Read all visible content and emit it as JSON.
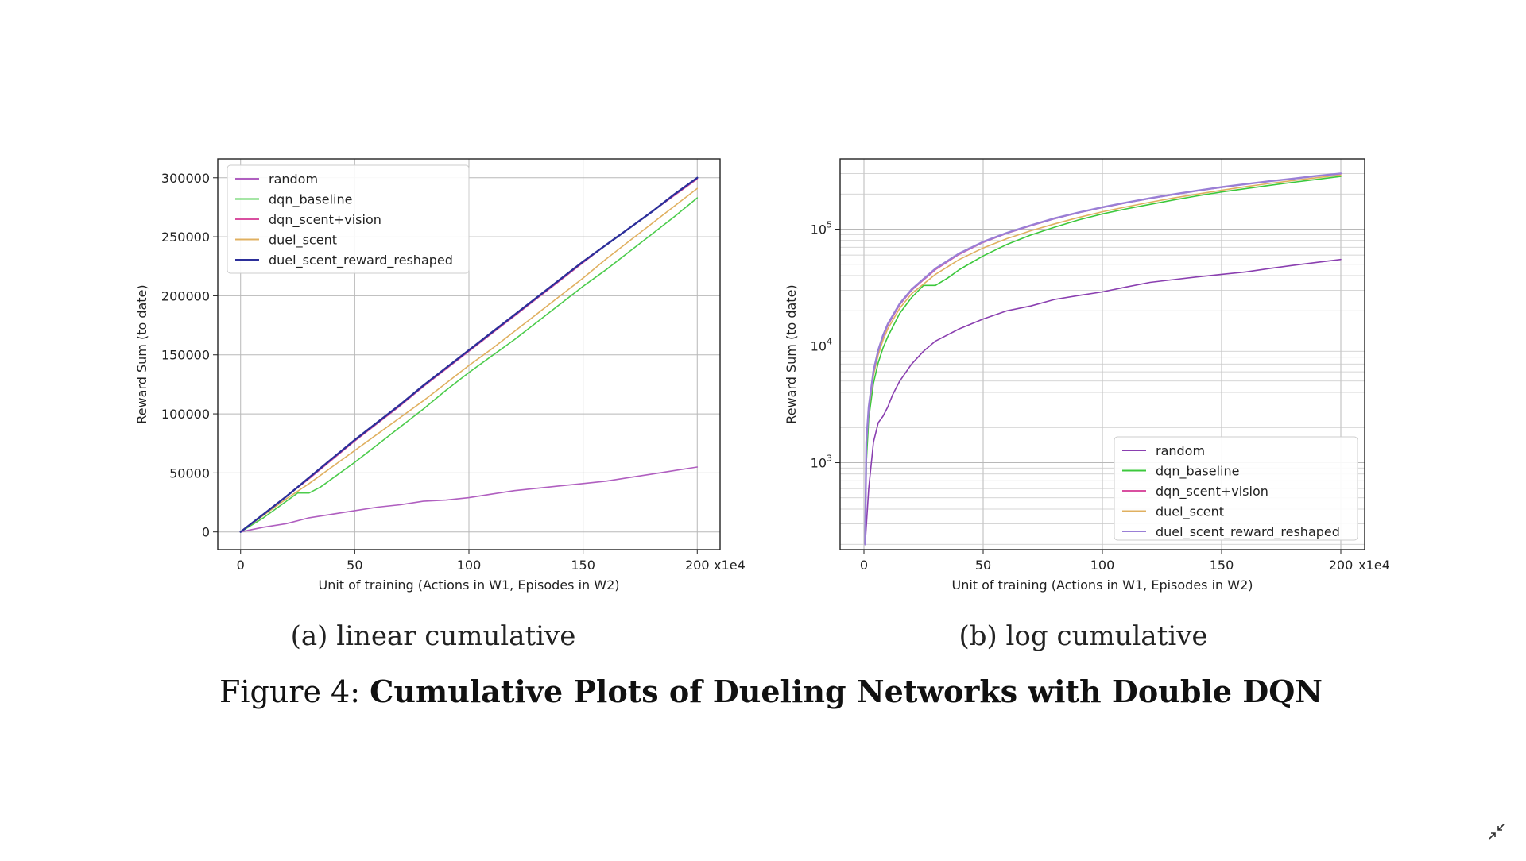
{
  "figure": {
    "caption_prefix": "Figure 4: ",
    "caption_title": "Cumulative Plots of Dueling Networks with Double DQN",
    "exit_fullscreen_icon": "exit-fullscreen-icon"
  },
  "chart_data": [
    {
      "type": "line",
      "subcaption": "(a) linear cumulative",
      "xlabel": "Unit of training (Actions in W1, Episodes in W2)",
      "ylabel": "Reward Sum (to date)",
      "x_offset_text": "x1e4",
      "xlim": [
        -10,
        210
      ],
      "ylim": [
        -15000,
        316000
      ],
      "yscale": "linear",
      "x_ticks": [
        0,
        50,
        100,
        150,
        200
      ],
      "x_tick_labels": [
        "0",
        "50",
        "100",
        "150",
        "200"
      ],
      "y_ticks": [
        0,
        50000,
        100000,
        150000,
        200000,
        250000,
        300000
      ],
      "y_tick_labels": [
        "0",
        "50000",
        "100000",
        "150000",
        "200000",
        "250000",
        "300000"
      ],
      "grid": true,
      "legend_position": "top-left",
      "series": [
        {
          "name": "random",
          "color": "#b05fc0",
          "x": [
            0,
            10,
            20,
            30,
            40,
            50,
            60,
            70,
            80,
            90,
            100,
            110,
            120,
            130,
            140,
            150,
            160,
            170,
            180,
            190,
            200
          ],
          "y": [
            0,
            4000,
            7000,
            12000,
            15000,
            18000,
            21000,
            23000,
            26000,
            27000,
            29000,
            32000,
            35000,
            37000,
            39000,
            41000,
            43000,
            46000,
            49000,
            52000,
            55000
          ]
        },
        {
          "name": "dqn_baseline",
          "color": "#4ccc4c",
          "x": [
            0,
            10,
            20,
            25,
            30,
            35,
            40,
            50,
            60,
            70,
            80,
            90,
            100,
            110,
            120,
            130,
            140,
            150,
            160,
            170,
            180,
            190,
            200
          ],
          "y": [
            0,
            12000,
            26000,
            33000,
            33000,
            38000,
            45000,
            59000,
            74000,
            89000,
            104000,
            120000,
            135000,
            149000,
            163000,
            178000,
            193000,
            208000,
            222000,
            237000,
            252000,
            267000,
            283000
          ]
        },
        {
          "name": "dqn_scent+vision",
          "color": "#d94fa0",
          "x": [
            0,
            10,
            20,
            30,
            40,
            50,
            60,
            70,
            80,
            90,
            100,
            110,
            120,
            130,
            140,
            150,
            160,
            170,
            180,
            190,
            200
          ],
          "y": [
            0,
            15000,
            30000,
            45000,
            61000,
            77000,
            92000,
            107000,
            123000,
            138000,
            153000,
            168000,
            183000,
            198000,
            213000,
            228000,
            243000,
            257000,
            271000,
            285000,
            299000
          ]
        },
        {
          "name": "duel_scent",
          "color": "#e0b060",
          "x": [
            0,
            10,
            20,
            30,
            40,
            50,
            60,
            70,
            80,
            90,
            100,
            110,
            120,
            130,
            140,
            150,
            160,
            170,
            180,
            190,
            200
          ],
          "y": [
            0,
            14000,
            28000,
            41000,
            55000,
            69000,
            83000,
            97000,
            111000,
            126000,
            141000,
            155000,
            170000,
            185000,
            200000,
            215000,
            231000,
            246000,
            261000,
            276000,
            291000
          ]
        },
        {
          "name": "duel_scent_reward_reshaped",
          "color": "#2c2f9a",
          "x": [
            0,
            10,
            20,
            30,
            40,
            50,
            60,
            70,
            80,
            90,
            100,
            110,
            120,
            130,
            140,
            150,
            160,
            170,
            180,
            190,
            200
          ],
          "y": [
            0,
            15000,
            30000,
            46000,
            62000,
            78000,
            93000,
            108000,
            124000,
            139000,
            154000,
            169000,
            184000,
            199000,
            214000,
            229000,
            243000,
            257000,
            271000,
            286000,
            300000
          ]
        }
      ]
    },
    {
      "type": "line",
      "subcaption": "(b) log cumulative",
      "xlabel": "Unit of training (Actions in W1, Episodes in W2)",
      "ylabel": "Reward Sum (to date)",
      "x_offset_text": "x1e4",
      "xlim": [
        -10,
        210
      ],
      "ylim": [
        180,
        400000
      ],
      "yscale": "log",
      "x_ticks": [
        0,
        50,
        100,
        150,
        200
      ],
      "x_tick_labels": [
        "0",
        "50",
        "100",
        "150",
        "200"
      ],
      "y_ticks": [
        1000,
        10000,
        100000
      ],
      "y_tick_base": "10",
      "y_tick_exponents": [
        "3",
        "4",
        "5"
      ],
      "grid": true,
      "legend_position": "lower-right",
      "series": [
        {
          "name": "random",
          "color": "#8a3fb0",
          "x": [
            0.5,
            2,
            4,
            6,
            8,
            10,
            12,
            15,
            20,
            25,
            30,
            40,
            50,
            60,
            70,
            80,
            90,
            100,
            110,
            120,
            130,
            140,
            150,
            160,
            170,
            180,
            190,
            200
          ],
          "y": [
            200,
            600,
            1500,
            2200,
            2500,
            3000,
            3800,
            5000,
            7000,
            9000,
            11000,
            14000,
            17000,
            20000,
            22000,
            25000,
            27000,
            29000,
            32000,
            35000,
            37000,
            39000,
            41000,
            43000,
            46000,
            49000,
            52000,
            55000
          ]
        },
        {
          "name": "dqn_baseline",
          "color": "#3cc83c",
          "x": [
            0.5,
            1,
            2,
            4,
            6,
            8,
            10,
            15,
            20,
            25,
            30,
            35,
            40,
            50,
            60,
            70,
            80,
            90,
            100,
            110,
            120,
            130,
            140,
            150,
            160,
            170,
            180,
            190,
            200
          ],
          "y": [
            200,
            1000,
            2400,
            4800,
            7200,
            9600,
            12000,
            19000,
            26000,
            33000,
            33000,
            38000,
            45000,
            59000,
            74000,
            89000,
            104000,
            120000,
            135000,
            149000,
            163000,
            178000,
            193000,
            208000,
            222000,
            237000,
            252000,
            267000,
            283000
          ]
        },
        {
          "name": "dqn_scent+vision",
          "color": "#d94fa0",
          "x": [
            0.5,
            1,
            2,
            4,
            6,
            8,
            10,
            15,
            20,
            30,
            40,
            50,
            60,
            70,
            80,
            90,
            100,
            110,
            120,
            130,
            140,
            150,
            160,
            170,
            180,
            190,
            200
          ],
          "y": [
            200,
            1500,
            3000,
            6000,
            9000,
            12000,
            15000,
            22500,
            30000,
            45000,
            61000,
            77000,
            92000,
            107000,
            123000,
            138000,
            153000,
            168000,
            183000,
            198000,
            213000,
            228000,
            243000,
            257000,
            271000,
            285000,
            299000
          ]
        },
        {
          "name": "duel_scent",
          "color": "#e0b060",
          "x": [
            0.5,
            1,
            2,
            4,
            6,
            8,
            10,
            15,
            20,
            30,
            40,
            50,
            60,
            70,
            80,
            90,
            100,
            110,
            120,
            130,
            140,
            150,
            160,
            170,
            180,
            190,
            200
          ],
          "y": [
            200,
            1400,
            2800,
            5600,
            8400,
            11200,
            14000,
            21000,
            28000,
            41000,
            55000,
            69000,
            83000,
            97000,
            111000,
            126000,
            141000,
            155000,
            170000,
            185000,
            200000,
            215000,
            231000,
            246000,
            261000,
            276000,
            291000
          ]
        },
        {
          "name": "duel_scent_reward_reshaped",
          "color": "#9a7fd6",
          "x": [
            0.5,
            1,
            2,
            4,
            6,
            8,
            10,
            15,
            20,
            30,
            40,
            50,
            60,
            70,
            80,
            90,
            100,
            110,
            120,
            130,
            140,
            150,
            160,
            170,
            180,
            190,
            200
          ],
          "y": [
            200,
            1500,
            3000,
            6100,
            9200,
            12300,
            15400,
            23000,
            30500,
            46000,
            62000,
            78000,
            93000,
            108000,
            124000,
            139000,
            154000,
            169000,
            184000,
            199000,
            214000,
            229000,
            243000,
            257000,
            271000,
            286000,
            300000
          ]
        }
      ]
    }
  ]
}
